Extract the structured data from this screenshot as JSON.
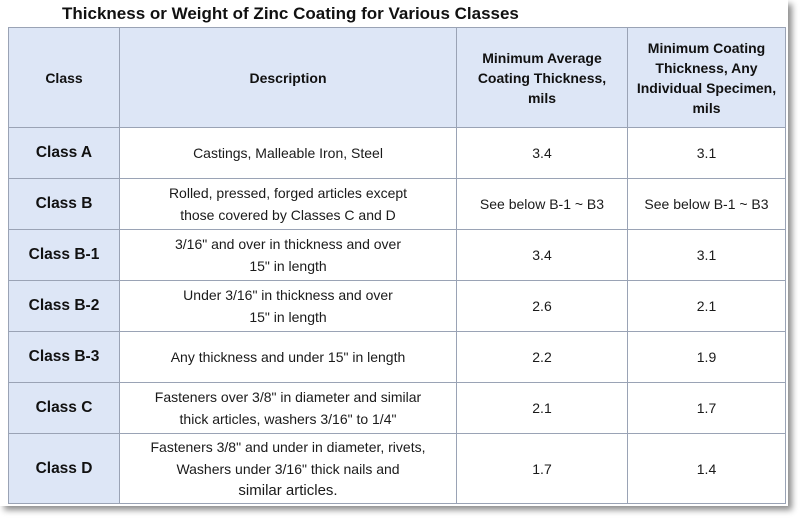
{
  "title": "Thickness or Weight of Zinc Coating for Various Classes",
  "headers": {
    "class": "Class",
    "description": "Description",
    "min_avg_lines": [
      "Minimum Average",
      "Coating Thickness,",
      "mils"
    ],
    "min_ind_lines": [
      "Minimum Coating",
      "Thickness, Any",
      "Individual Specimen,",
      "mils"
    ]
  },
  "rows": [
    {
      "class": "Class A",
      "description": [
        "Castings, Malleable Iron, Steel"
      ],
      "min_avg": "3.4",
      "min_ind": "3.1"
    },
    {
      "class": "Class B",
      "description": [
        "Rolled, pressed, forged articles except",
        "those covered by Classes C and D"
      ],
      "min_avg": "See below  B-1 ~ B3",
      "min_ind": "See below B-1 ~ B3"
    },
    {
      "class": "Class B-1",
      "description": [
        "3/16\" and over in thickness and over",
        "15\" in length"
      ],
      "min_avg": "3.4",
      "min_ind": "3.1"
    },
    {
      "class": "Class B-2",
      "description": [
        "Under 3/16\" in thickness  and over",
        "15\" in length"
      ],
      "min_avg": "2.6",
      "min_ind": "2.1"
    },
    {
      "class": "Class B-3",
      "description": [
        "Any thickness and under 15\" in length"
      ],
      "min_avg": "2.2",
      "min_ind": "1.9"
    },
    {
      "class": "Class C",
      "description": [
        "Fasteners over 3/8\" in diameter and similar",
        "thick articles, washers 3/16\" to 1/4\""
      ],
      "min_avg": "2.1",
      "min_ind": "1.7"
    },
    {
      "class": "Class D",
      "description": [
        "Fasteners 3/8\" and under in diameter, rivets,",
        "Washers under 3/16\" thick nails and",
        "similar articles."
      ],
      "min_avg": "1.7",
      "min_ind": "1.4"
    }
  ]
}
